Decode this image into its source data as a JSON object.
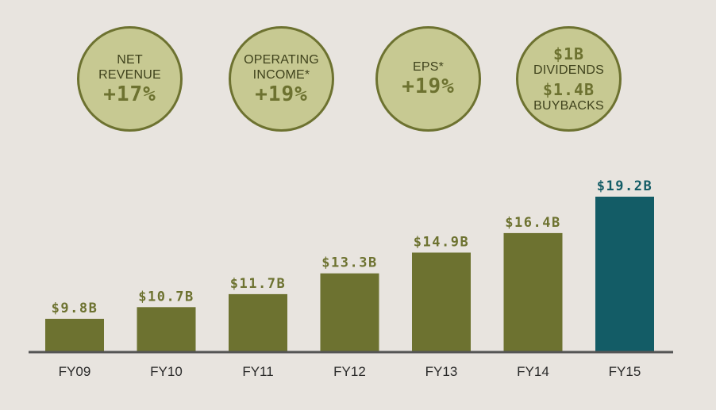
{
  "highlights": {
    "net_revenue": {
      "label": "NET\nREVENUE",
      "value": "+17%"
    },
    "operating_income": {
      "label": "OPERATING\nINCOME*",
      "value": "+19%"
    },
    "eps": {
      "label": "EPS*",
      "value": "+19%"
    },
    "returns": {
      "dividends_value": "$1B",
      "dividends_label": "DIVIDENDS",
      "buybacks_value": "$1.4B",
      "buybacks_label": "BUYBACKS"
    }
  },
  "colors": {
    "background": "#e8e4df",
    "circle_fill": "#c7c992",
    "olive": "#6d7230",
    "teal": "#135c66",
    "axis": "#555555"
  },
  "chart_data": {
    "type": "bar",
    "categories": [
      "FY09",
      "FY10",
      "FY11",
      "FY12",
      "FY13",
      "FY14",
      "FY15"
    ],
    "values": [
      9.8,
      10.7,
      11.7,
      13.3,
      14.9,
      16.4,
      19.2
    ],
    "value_labels": [
      "$9.8B",
      "$10.7B",
      "$11.7B",
      "$13.3B",
      "$14.9B",
      "$16.4B",
      "$19.2B"
    ],
    "highlight_index": 6,
    "ylim": [
      7.3,
      19.2
    ],
    "title": "",
    "xlabel": "",
    "ylabel": "",
    "grid": false,
    "legend": "none"
  }
}
